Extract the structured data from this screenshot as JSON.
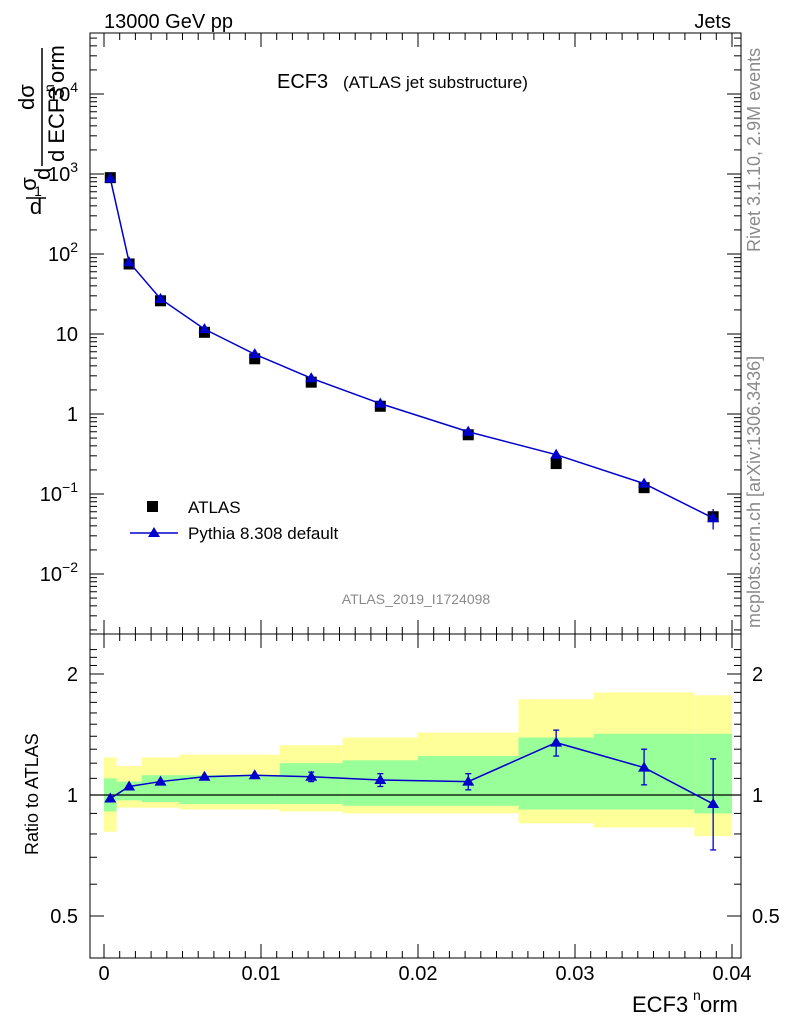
{
  "header": {
    "left": "13000 GeV pp",
    "right": "Jets"
  },
  "side_labels": {
    "rivet": "Rivet 3.1.10,  2.9M events",
    "mcplots": "mcplots.cern.ch [arXiv:1306.3436]"
  },
  "analysis_id": "ATLAS_2019_I1724098",
  "chart_data": [
    {
      "type": "line",
      "title": "ECF3",
      "subtitle": "(ATLAS jet substructure)",
      "ylabel": "1/σ dσ/d ECF3norm",
      "yscale": "log",
      "ylim": [
        0.002,
        50000
      ],
      "xlim": [
        -0.001,
        0.04
      ],
      "legend_position": "middle-left",
      "series": [
        {
          "name": "ATLAS",
          "marker": "square",
          "color": "#000000",
          "x": [
            0.0004,
            0.0016,
            0.0036,
            0.0064,
            0.0096,
            0.0132,
            0.0176,
            0.0232,
            0.0288,
            0.0344,
            0.0388
          ],
          "y": [
            900,
            75,
            26,
            10.5,
            4.9,
            2.5,
            1.25,
            0.55,
            0.24,
            0.12,
            0.052
          ]
        },
        {
          "name": "Pythia 8.308 default",
          "marker": "triangle",
          "color": "#0000cc",
          "x": [
            0.0004,
            0.0016,
            0.0036,
            0.0064,
            0.0096,
            0.0132,
            0.0176,
            0.0232,
            0.0288,
            0.0344,
            0.0388
          ],
          "y": [
            880,
            79,
            27.5,
            11.5,
            5.6,
            2.8,
            1.35,
            0.6,
            0.31,
            0.135,
            0.05
          ],
          "err_low": [
            0,
            0,
            0,
            0,
            0,
            0,
            0,
            0,
            0,
            0,
            0.036
          ],
          "err_high": [
            0,
            0,
            0,
            0,
            0,
            0,
            0,
            0,
            0,
            0,
            0.065
          ]
        }
      ],
      "y_ticks": [
        {
          "value": 0.01,
          "base": "10",
          "exp": "−2"
        },
        {
          "value": 0.1,
          "base": "10",
          "exp": "−1"
        },
        {
          "value": 1,
          "base": "1",
          "exp": ""
        },
        {
          "value": 10,
          "base": "10",
          "exp": ""
        },
        {
          "value": 100,
          "base": "10",
          "exp": "2"
        },
        {
          "value": 1000,
          "base": "10",
          "exp": "3"
        },
        {
          "value": 10000,
          "base": "10",
          "exp": "4"
        }
      ]
    },
    {
      "type": "line",
      "ylabel": "Ratio to ATLAS",
      "xlabel": "ECF3norm",
      "yscale": "log",
      "ylim": [
        0.41,
        2.4
      ],
      "xlim": [
        -0.001,
        0.04
      ],
      "x_ticks": [
        0,
        0.01,
        0.02,
        0.03,
        0.04
      ],
      "x_tick_labels": [
        "0",
        "0.01",
        "0.02",
        "0.03",
        "0.04"
      ],
      "y_ticks": [
        0.5,
        1,
        2
      ],
      "y_tick_labels": [
        "0.5",
        "1",
        "2"
      ],
      "bins": [
        0,
        0.0008,
        0.0024,
        0.0048,
        0.008,
        0.0112,
        0.0152,
        0.02,
        0.0264,
        0.0312,
        0.0376,
        0.04
      ],
      "band_total_low": [
        0.81,
        0.93,
        0.93,
        0.92,
        0.92,
        0.91,
        0.9,
        0.9,
        0.85,
        0.83,
        0.79
      ],
      "band_total_high": [
        1.24,
        1.18,
        1.24,
        1.26,
        1.26,
        1.33,
        1.39,
        1.43,
        1.73,
        1.8,
        1.77
      ],
      "band_stat_low": [
        0.91,
        0.97,
        0.96,
        0.95,
        0.95,
        0.95,
        0.94,
        0.94,
        0.92,
        0.92,
        0.9
      ],
      "band_stat_high": [
        1.1,
        1.08,
        1.12,
        1.12,
        1.12,
        1.2,
        1.22,
        1.25,
        1.39,
        1.42,
        1.42
      ],
      "series": [
        {
          "name": "Pythia 8.308 default",
          "color": "#0000cc",
          "x": [
            0.0004,
            0.0016,
            0.0036,
            0.0064,
            0.0096,
            0.0132,
            0.0176,
            0.0232,
            0.0288,
            0.0344,
            0.0388
          ],
          "y": [
            0.98,
            1.05,
            1.08,
            1.11,
            1.12,
            1.11,
            1.09,
            1.08,
            1.35,
            1.17,
            0.95
          ],
          "err_low": [
            0,
            0,
            0,
            0,
            0,
            0.03,
            0.04,
            0.05,
            0.1,
            0.11,
            0.22
          ],
          "err_high": [
            0,
            0,
            0,
            0,
            0,
            0.03,
            0.04,
            0.05,
            0.1,
            0.13,
            0.28
          ]
        }
      ]
    }
  ]
}
